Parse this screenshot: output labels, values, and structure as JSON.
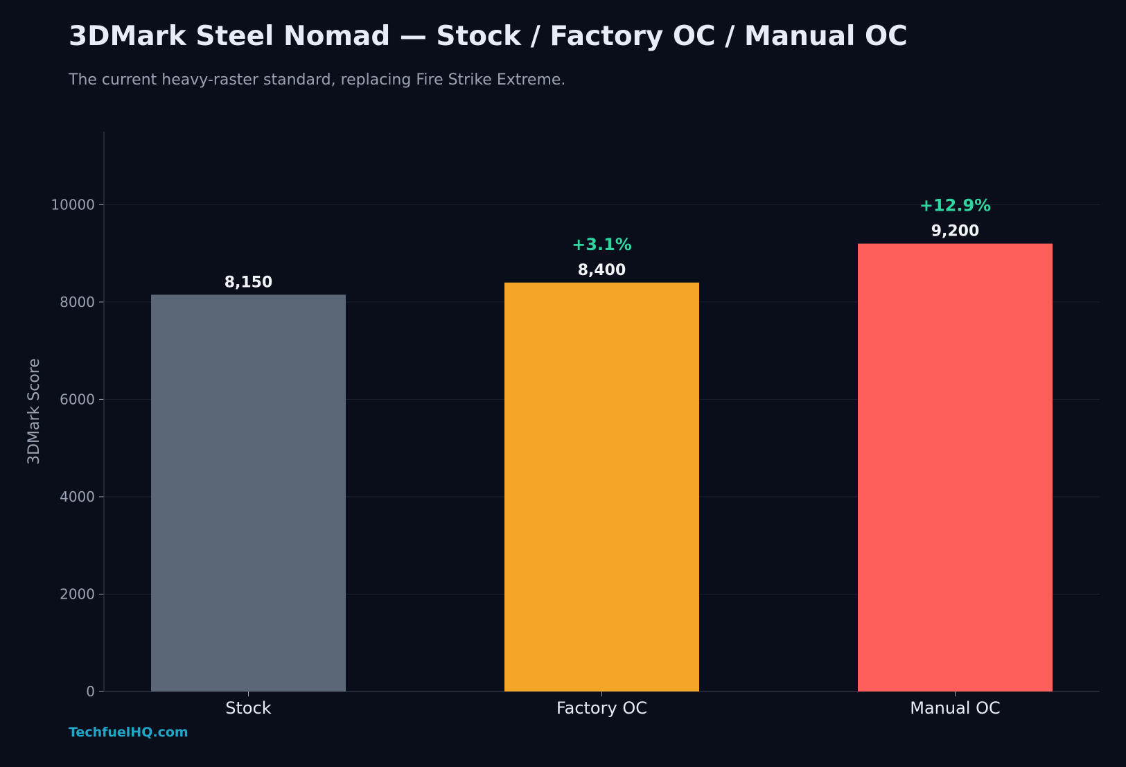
{
  "header": {
    "title": "3DMark Steel Nomad — Stock / Factory OC / Manual OC",
    "subtitle": "The current heavy-raster standard, replacing Fire Strike Extreme."
  },
  "footer": {
    "watermark": "TechfuelHQ.com"
  },
  "colors": {
    "background": "#0a0e1a",
    "grid": "#1b2130",
    "axis": "#2a3140",
    "tick_text": "#9aa2b3",
    "category_text": "#e8ecf6",
    "value_text": "#f2f4f8",
    "gain_text": "#2fd6a0",
    "stock_bar": "#5b6776",
    "factory_bar": "#f4a628",
    "manual_bar": "#ff5f5a",
    "watermark": "#22a6c8"
  },
  "chart_data": {
    "type": "bar",
    "title": "3DMark Steel Nomad — Stock / Factory OC / Manual OC",
    "subtitle": "The current heavy-raster standard, replacing Fire Strike Extreme.",
    "xlabel": "",
    "ylabel": "3DMark Score",
    "categories": [
      "Stock",
      "Factory OC",
      "Manual OC"
    ],
    "values": [
      8150,
      8400,
      9200
    ],
    "value_labels": [
      "8,150",
      "8,400",
      "9,200"
    ],
    "gain_labels": [
      "",
      "+3.1%",
      "+12.9%"
    ],
    "bar_colors": [
      "#5b6776",
      "#f4a628",
      "#ff5f5a"
    ],
    "ylim": [
      0,
      11500
    ],
    "yticks": [
      0,
      2000,
      4000,
      6000,
      8000,
      10000
    ],
    "ytick_labels": [
      "0",
      "2000",
      "4000",
      "6000",
      "8000",
      "10000"
    ],
    "grid": true,
    "legend": "none"
  }
}
